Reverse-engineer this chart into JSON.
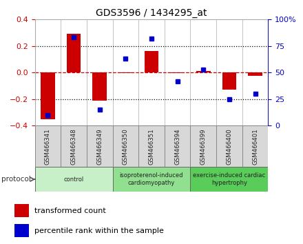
{
  "title": "GDS3596 / 1434295_at",
  "samples": [
    "GSM466341",
    "GSM466348",
    "GSM466349",
    "GSM466350",
    "GSM466351",
    "GSM466394",
    "GSM466399",
    "GSM466400",
    "GSM466401"
  ],
  "red_bars": [
    -0.35,
    0.29,
    -0.21,
    -0.005,
    0.163,
    -0.005,
    0.01,
    -0.13,
    -0.025
  ],
  "blue_dots": [
    10,
    83,
    15,
    63,
    82,
    42,
    53,
    25,
    30
  ],
  "ylim_left": [
    -0.4,
    0.4
  ],
  "ylim_right": [
    0,
    100
  ],
  "yticks_left": [
    -0.4,
    -0.2,
    0.0,
    0.2,
    0.4
  ],
  "yticks_right": [
    0,
    25,
    50,
    75,
    100
  ],
  "yticklabels_right": [
    "0",
    "25",
    "50",
    "75",
    "100%"
  ],
  "dotted_lines": [
    -0.2,
    0.2
  ],
  "bar_color": "#CC0000",
  "dot_color": "#0000CC",
  "groups": [
    {
      "label": "control",
      "start": 0,
      "end": 2,
      "color": "#c8f0c8"
    },
    {
      "label": "isoproterenol-induced\ncardiomyopathy",
      "start": 3,
      "end": 5,
      "color": "#90e090"
    },
    {
      "label": "exercise-induced cardiac\nhypertrophy",
      "start": 6,
      "end": 8,
      "color": "#5acc5a"
    }
  ],
  "legend_items": [
    {
      "label": "transformed count",
      "color": "#CC0000"
    },
    {
      "label": "percentile rank within the sample",
      "color": "#0000CC"
    }
  ],
  "sample_box_color": "#d8d8d8",
  "sample_box_edge": "#888888",
  "background_fig": "#ffffff"
}
